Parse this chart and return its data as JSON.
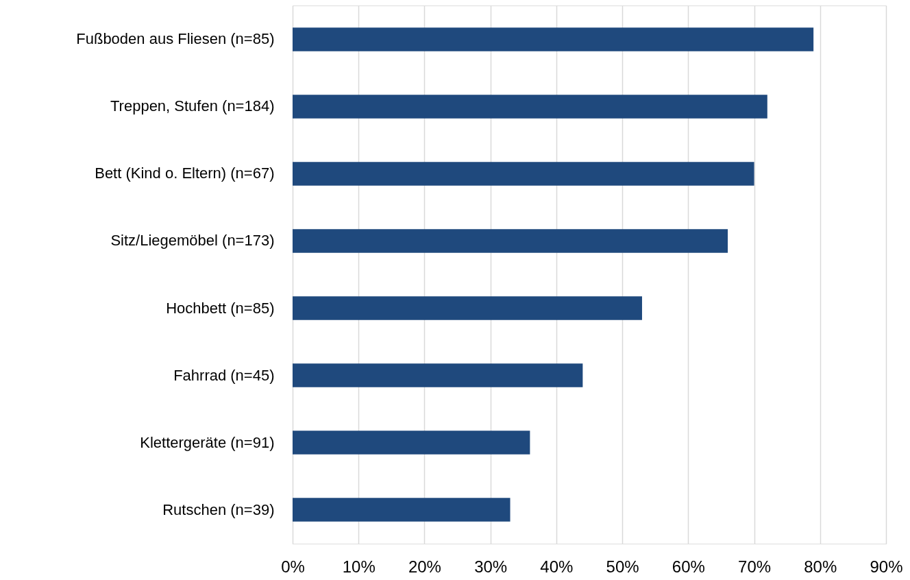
{
  "chart_data": {
    "type": "bar",
    "orientation": "horizontal",
    "categories": [
      "Fußboden aus Fliesen (n=85)",
      "Treppen, Stufen (n=184)",
      "Bett (Kind o. Eltern) (n=67)",
      "Sitz/Liegemöbel (n=173)",
      "Hochbett (n=85)",
      "Fahrrad (n=45)",
      "Klettergeräte (n=91)",
      "Rutschen (n=39)"
    ],
    "values": [
      79,
      72,
      70,
      66,
      53,
      44,
      36,
      33
    ],
    "color": "#1f497d",
    "xlim": [
      0,
      90
    ],
    "xticks": [
      {
        "value": 0,
        "label": "0%"
      },
      {
        "value": 10,
        "label": "10%"
      },
      {
        "value": 20,
        "label": "20%"
      },
      {
        "value": 30,
        "label": "30%"
      },
      {
        "value": 40,
        "label": "40%"
      },
      {
        "value": 50,
        "label": "50%"
      },
      {
        "value": 60,
        "label": "60%"
      },
      {
        "value": 70,
        "label": "70%"
      },
      {
        "value": 80,
        "label": "80%"
      },
      {
        "value": 90,
        "label": "90%"
      }
    ],
    "grid": "x"
  }
}
